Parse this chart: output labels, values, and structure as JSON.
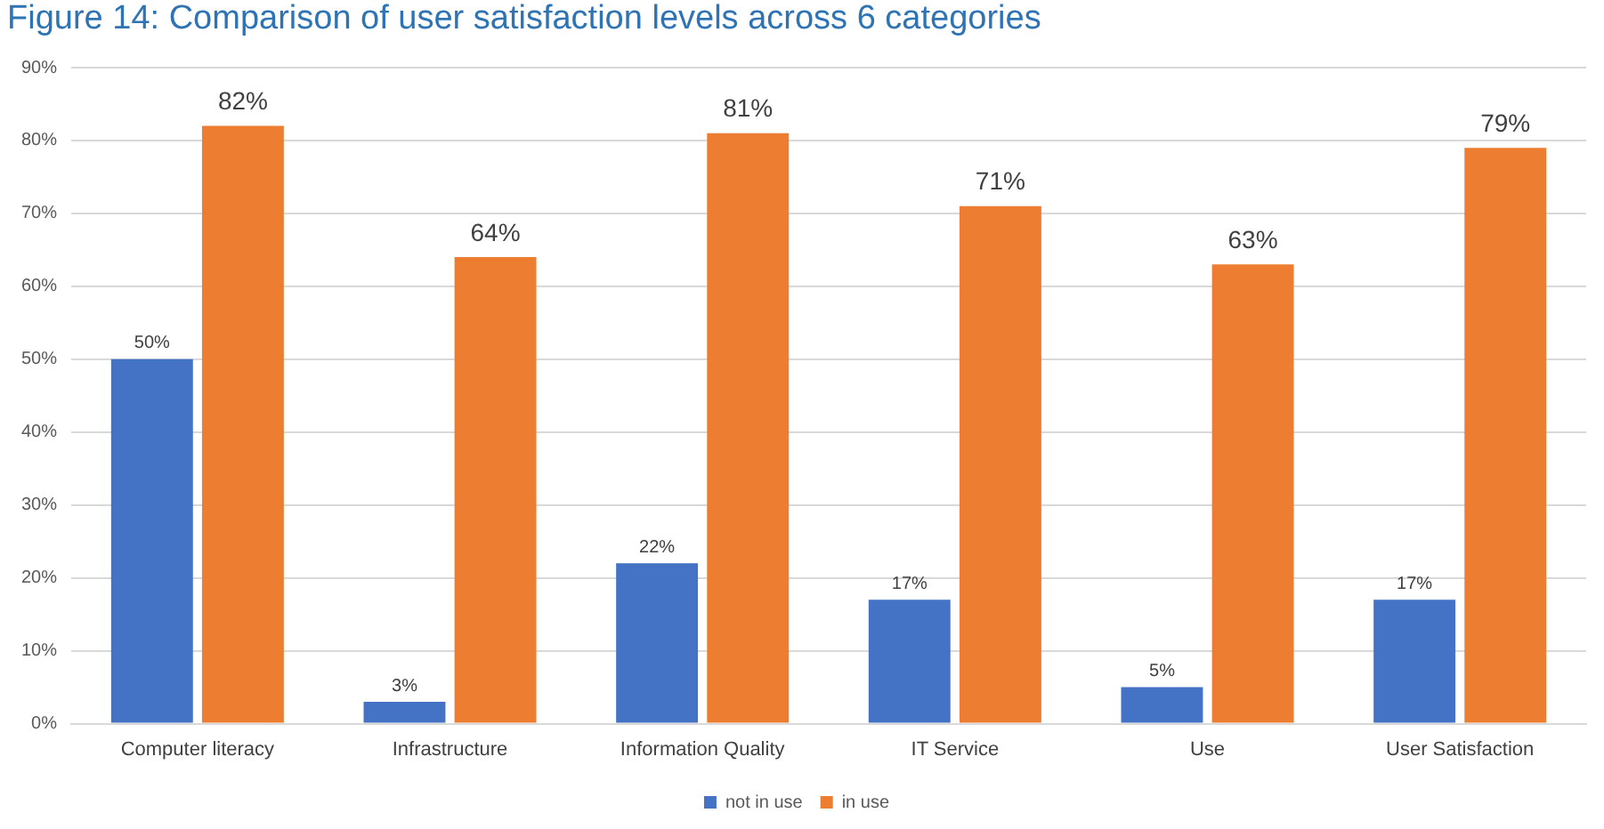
{
  "chart_data": {
    "type": "bar",
    "title": "Figure 14: Comparison of user satisfaction levels across 6 categories",
    "categories": [
      "Computer literacy",
      "Infrastructure",
      "Information Quality",
      "IT Service",
      "Use",
      "User Satisfaction"
    ],
    "series": [
      {
        "name": "not in use",
        "color": "#4472c4",
        "values": [
          50,
          3,
          22,
          17,
          5,
          17
        ],
        "value_labels": [
          "50%",
          "3%",
          "22%",
          "17%",
          "5%",
          "17%"
        ]
      },
      {
        "name": "in use",
        "color": "#ed7d31",
        "values": [
          82,
          64,
          81,
          71,
          63,
          79
        ],
        "value_labels": [
          "82%",
          "64%",
          "81%",
          "71%",
          "63%",
          "79%"
        ]
      }
    ],
    "ylim": [
      0,
      90
    ],
    "yticks": [
      {
        "value": 0,
        "label": "0%"
      },
      {
        "value": 10,
        "label": "10%"
      },
      {
        "value": 20,
        "label": "20%"
      },
      {
        "value": 30,
        "label": "30%"
      },
      {
        "value": 40,
        "label": "40%"
      },
      {
        "value": 50,
        "label": "50%"
      },
      {
        "value": 60,
        "label": "60%"
      },
      {
        "value": 70,
        "label": "70%"
      },
      {
        "value": 80,
        "label": "80%"
      },
      {
        "value": 90,
        "label": "90%"
      }
    ],
    "grid": "y",
    "legend": "bottom"
  }
}
